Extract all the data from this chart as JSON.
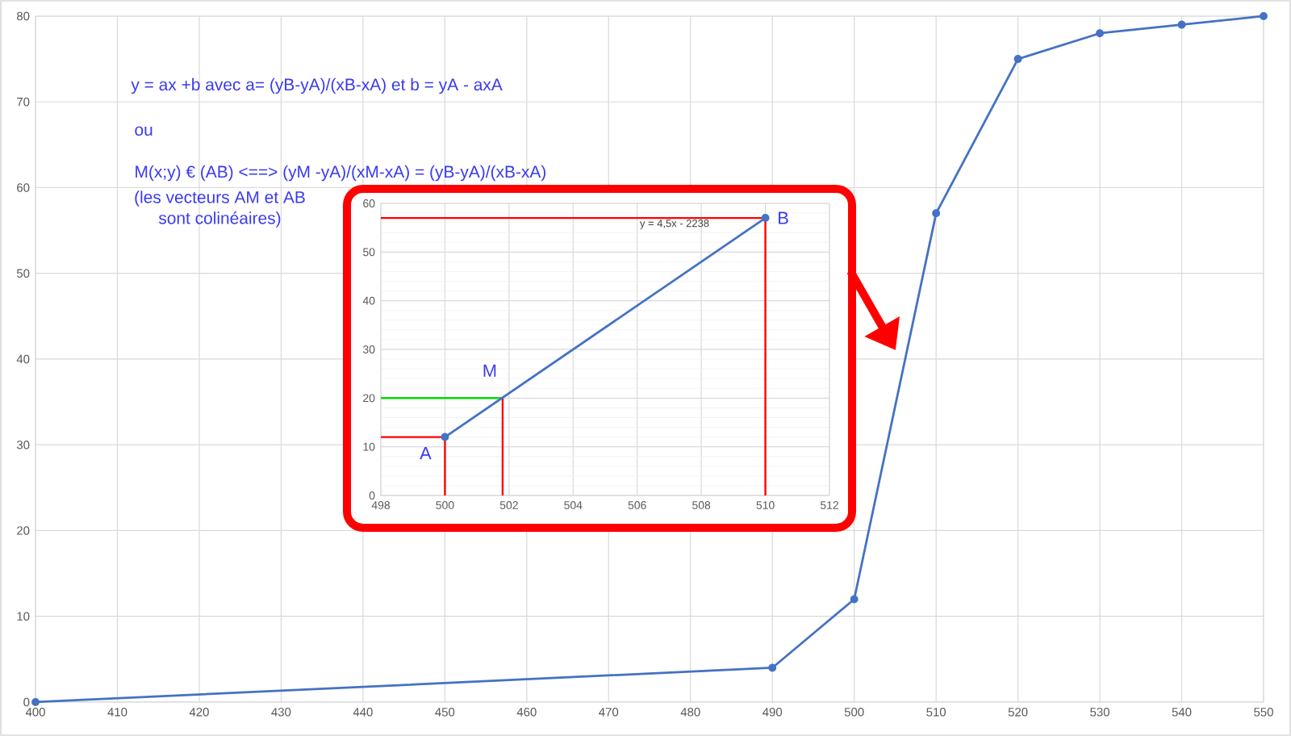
{
  "chart_data": [
    {
      "type": "line",
      "x": [
        400,
        490,
        500,
        510,
        520,
        530,
        540,
        550
      ],
      "values": [
        0,
        4,
        12,
        57,
        75,
        78,
        79,
        80
      ],
      "color": "#4472c4",
      "marker": "circle",
      "xlim": [
        400,
        550
      ],
      "xticks": [
        400,
        410,
        420,
        430,
        440,
        450,
        460,
        470,
        480,
        490,
        500,
        510,
        520,
        530,
        540,
        550
      ],
      "ylim": [
        0,
        80
      ],
      "yticks": [
        0,
        10,
        20,
        30,
        40,
        50,
        60,
        70,
        80
      ],
      "grid": true,
      "annotations": [
        "y = ax +b avec a= (yB-yA)/(xB-xA) et b = yA - axA",
        "ou",
        "M(x;y) € (AB) <==> (yM -yA)/(xM-xA) = (yB-yA)/(xB-xA)",
        "(les vecteurs AM et AB sont colinéaires)"
      ]
    },
    {
      "type": "line",
      "xlim": [
        498,
        512
      ],
      "xticks": [
        498,
        500,
        502,
        504,
        506,
        508,
        510,
        512
      ],
      "ylim": [
        0,
        60
      ],
      "yticks": [
        0,
        10,
        20,
        30,
        40,
        50,
        60
      ],
      "grid": true,
      "series": [
        {
          "color": "#ff0000",
          "x": [
            498,
            510,
            510
          ],
          "values": [
            57,
            57,
            0
          ]
        },
        {
          "color": "#ff0000",
          "x": [
            498,
            500,
            500
          ],
          "values": [
            12,
            12,
            0
          ]
        },
        {
          "color": "#00dd00",
          "x": [
            498,
            501.8
          ],
          "values": [
            20,
            20
          ]
        },
        {
          "color": "#ff0000",
          "x": [
            501.8,
            501.8
          ],
          "values": [
            20,
            0
          ]
        },
        {
          "color": "#4472c4",
          "x": [
            500,
            510
          ],
          "values": [
            12,
            57
          ],
          "marker": "circle"
        }
      ],
      "annotations": [
        {
          "text": "A",
          "x": 500,
          "y": 12
        },
        {
          "text": "B",
          "x": 510,
          "y": 57
        },
        {
          "text": "M",
          "x": 501.8,
          "y": 20
        },
        "y = 4,5x - 2238"
      ]
    }
  ]
}
